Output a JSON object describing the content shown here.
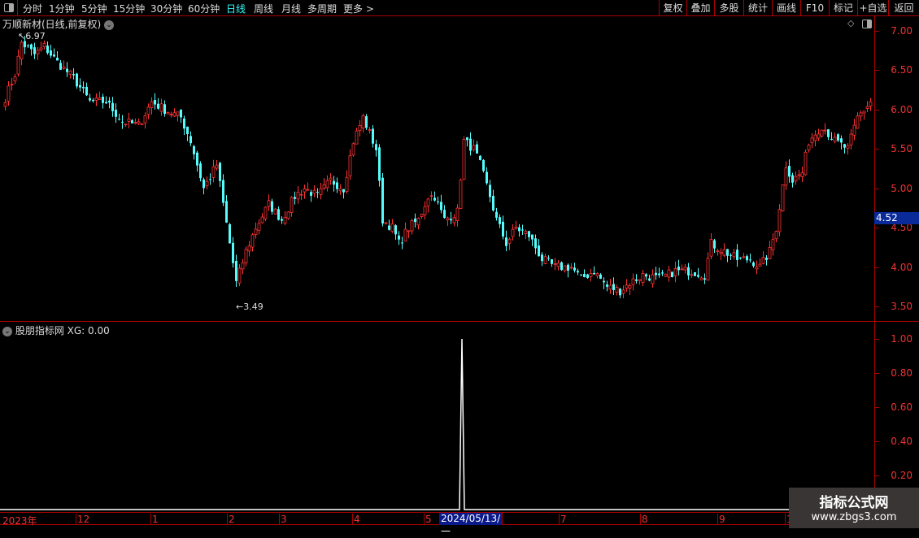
{
  "toolbar": {
    "periods": [
      "分时",
      "1分钟",
      "5分钟",
      "15分钟",
      "30分钟",
      "60分钟",
      "日线",
      "周线",
      "月线",
      "多周期",
      "更多 >"
    ],
    "active": "日线",
    "right": [
      "复权",
      "叠加",
      "多股",
      "统计",
      "画线",
      "F10",
      "标记",
      "+自选",
      "返回"
    ]
  },
  "stock": {
    "title": "万顺新材(日线,前复权)",
    "high_label": "6.97",
    "low_label": "3.49",
    "current_price": "4.52"
  },
  "price_axis": [
    "7.00",
    "6.50",
    "6.00",
    "5.50",
    "5.00",
    "4.50",
    "4.00",
    "3.50"
  ],
  "indicator": {
    "title": "股朋指标网 XG: 0.00",
    "axis": [
      "1.00",
      "0.80",
      "0.60",
      "0.40",
      "0.20"
    ]
  },
  "time_axis": {
    "labels": [
      "2023年",
      "12",
      "1",
      "2",
      "3",
      "4",
      "5",
      "7",
      "8",
      "9",
      "1"
    ],
    "selected": "2024/05/13/一"
  },
  "watermark": {
    "line1": "指标公式网",
    "line2": "www.zbgs3.com"
  },
  "colors": {
    "up": "#ff3232",
    "down": "#54fcfc",
    "axis": "#aa0000",
    "label": "#ee3333"
  },
  "chart_data": [
    {
      "type": "candlestick",
      "ylim": [
        3.4,
        7.1
      ],
      "close_anchors": [
        [
          0,
          6.15
        ],
        [
          3,
          6.45
        ],
        [
          5,
          6.85
        ],
        [
          9,
          6.7
        ],
        [
          12,
          6.8
        ],
        [
          16,
          6.6
        ],
        [
          21,
          6.4
        ],
        [
          26,
          6.1
        ],
        [
          31,
          6.1
        ],
        [
          36,
          5.85
        ],
        [
          41,
          5.8
        ],
        [
          45,
          6.1
        ],
        [
          49,
          6.0
        ],
        [
          54,
          5.9
        ],
        [
          57,
          5.6
        ],
        [
          61,
          5.0
        ],
        [
          65,
          5.3
        ],
        [
          67,
          4.8
        ],
        [
          71,
          3.8
        ],
        [
          74,
          4.2
        ],
        [
          77,
          4.5
        ],
        [
          81,
          4.8
        ],
        [
          85,
          4.6
        ],
        [
          89,
          4.9
        ],
        [
          92,
          5.0
        ],
        [
          96,
          4.9
        ],
        [
          100,
          5.1
        ],
        [
          104,
          5.0
        ],
        [
          107,
          5.6
        ],
        [
          110,
          5.9
        ],
        [
          114,
          5.5
        ],
        [
          116,
          4.6
        ],
        [
          119,
          4.5
        ],
        [
          121,
          4.3
        ],
        [
          124,
          4.5
        ],
        [
          127,
          4.6
        ],
        [
          130,
          4.9
        ],
        [
          132,
          4.9
        ],
        [
          135,
          4.6
        ],
        [
          139,
          4.7
        ],
        [
          141,
          5.6
        ],
        [
          144,
          5.5
        ],
        [
          146,
          5.3
        ],
        [
          149,
          4.9
        ],
        [
          151,
          4.6
        ],
        [
          154,
          4.3
        ],
        [
          157,
          4.5
        ],
        [
          161,
          4.4
        ],
        [
          165,
          4.1
        ],
        [
          169,
          4.0
        ],
        [
          174,
          4.0
        ],
        [
          177,
          3.85
        ],
        [
          181,
          3.95
        ],
        [
          185,
          3.75
        ],
        [
          189,
          3.7
        ],
        [
          192,
          3.8
        ],
        [
          196,
          3.9
        ],
        [
          201,
          3.85
        ],
        [
          206,
          3.95
        ],
        [
          211,
          3.95
        ],
        [
          215,
          3.9
        ],
        [
          217,
          4.3
        ],
        [
          221,
          4.2
        ],
        [
          225,
          4.1
        ],
        [
          229,
          4.1
        ],
        [
          232,
          4.0
        ],
        [
          235,
          4.2
        ],
        [
          237,
          4.5
        ],
        [
          240,
          5.3
        ],
        [
          242,
          5.1
        ],
        [
          245,
          5.2
        ],
        [
          247,
          5.6
        ],
        [
          251,
          5.8
        ],
        [
          255,
          5.6
        ],
        [
          259,
          5.5
        ],
        [
          262,
          5.9
        ],
        [
          266,
          6.1
        ]
      ]
    },
    {
      "type": "line",
      "name": "XG",
      "ylim": [
        0,
        1
      ],
      "signal_date": "2024/05/13",
      "values": {
        "peak": 1.0,
        "rest": 0.0
      }
    }
  ]
}
